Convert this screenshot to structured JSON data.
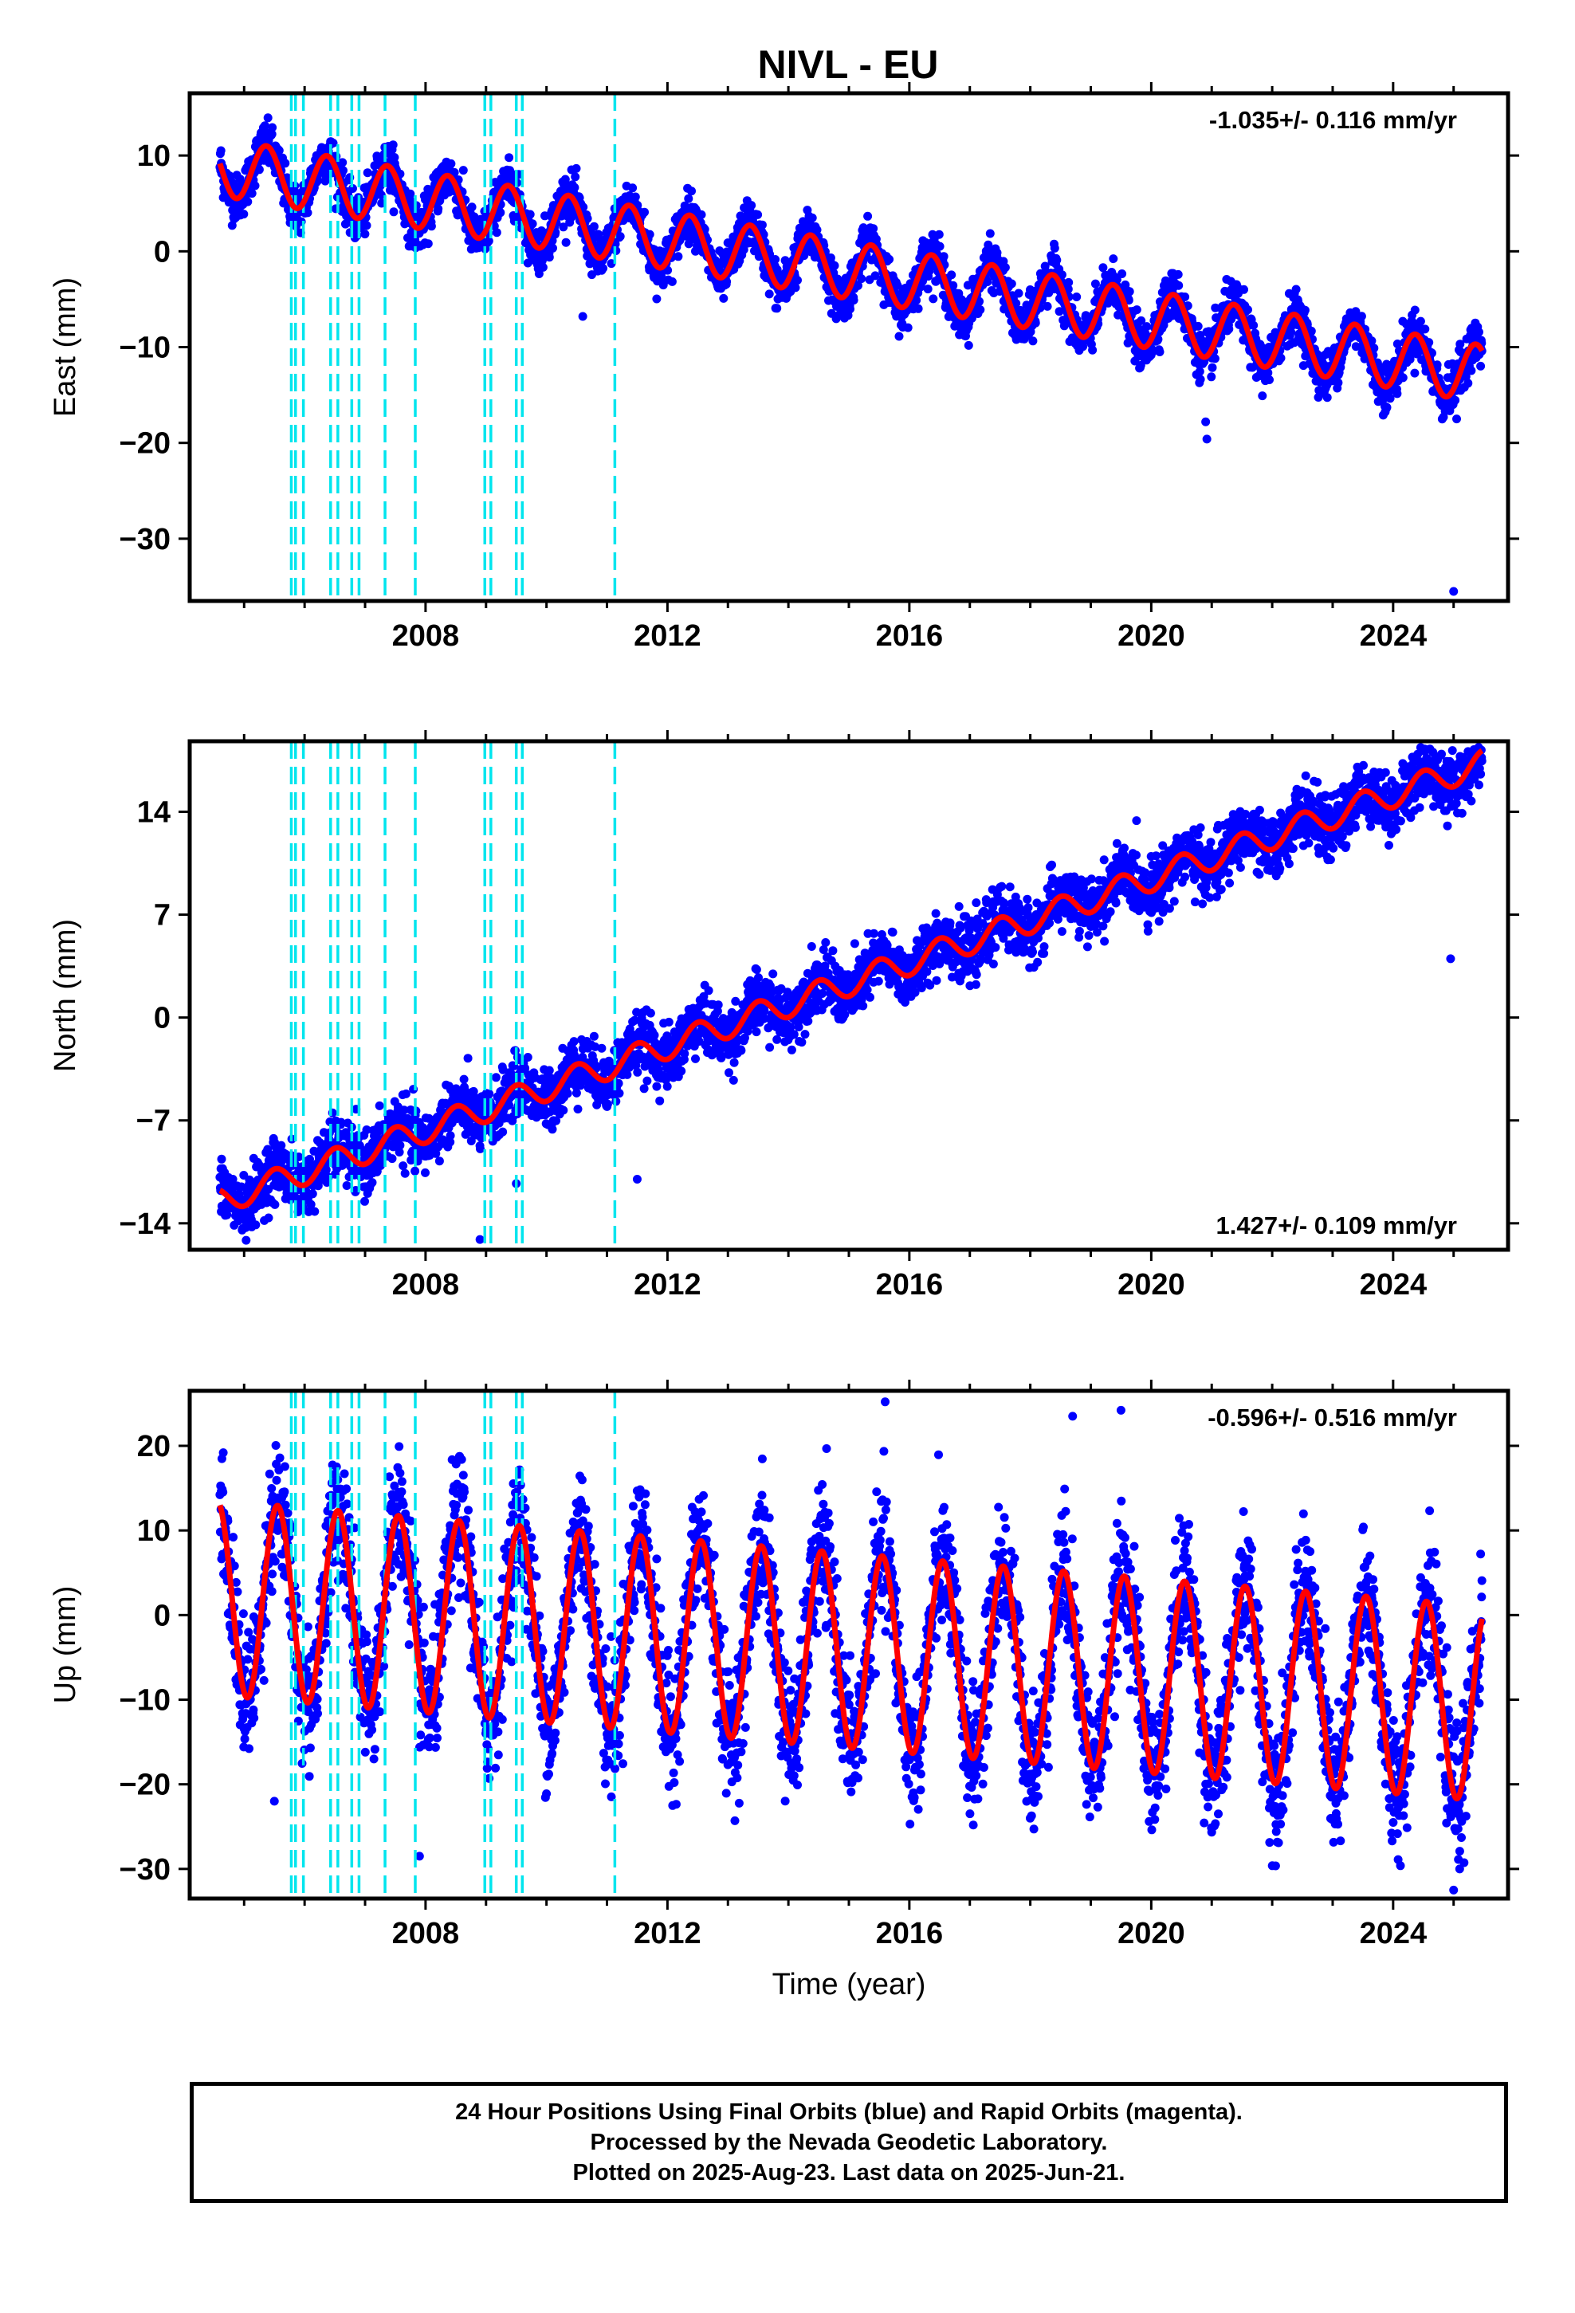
{
  "title": "NIVL - EU",
  "colors": {
    "final_orbit_points": "#0000ff",
    "model_fit": "#ff0000",
    "event_lines": "#00e5ee",
    "frame": "#000000"
  },
  "chart_data": [
    {
      "type": "scatter",
      "name": "east",
      "ylabel": "East (mm)",
      "xlabel": "",
      "rate": "-1.035+/- 0.116 mm/yr",
      "rate_position": "top-right",
      "xlim": [
        2004.1,
        2025.9
      ],
      "ylim": [
        -36.5,
        16.5
      ],
      "yticks": [
        10,
        0,
        -10,
        -20,
        -30
      ],
      "ytick_labels": [
        "10",
        "0",
        "−10",
        "−20",
        "−30"
      ],
      "xticks": [
        2008,
        2012,
        2016,
        2020,
        2024
      ],
      "xtick_labels": [
        "2008",
        "2012",
        "2016",
        "2020",
        "2024"
      ],
      "model": {
        "start": 2004.6,
        "end": 2025.47,
        "offset": 8.8,
        "trend": -1.035,
        "annual_amplitude": 3.0,
        "annual_phase": 1.45
      },
      "outliers": [
        [
          2020.9,
          -17.8
        ],
        [
          2020.92,
          -19.6
        ],
        [
          2025.05,
          -17.5
        ],
        [
          2025.0,
          -35.5
        ],
        [
          2010.6,
          -6.8
        ]
      ]
    },
    {
      "type": "scatter",
      "name": "north",
      "ylabel": "North (mm)",
      "xlabel": "",
      "rate": "1.427+/- 0.109 mm/yr",
      "rate_position": "bottom-right",
      "xlim": [
        2004.1,
        2025.9
      ],
      "ylim": [
        -15.8,
        18.8
      ],
      "yticks": [
        14,
        7,
        0,
        -7,
        -14
      ],
      "ytick_labels": [
        "14",
        "7",
        "0",
        "−7",
        "−14"
      ],
      "xticks": [
        2008,
        2012,
        2016,
        2020,
        2024
      ],
      "xtick_labels": [
        "2008",
        "2012",
        "2016",
        "2020",
        "2024"
      ],
      "model": {
        "start": 2004.6,
        "end": 2025.47,
        "offset": -12.5,
        "trend": 1.427,
        "annual_amplitude": 0.9,
        "annual_phase": 0.6
      },
      "outliers": [
        [
          2024.95,
          4.0
        ],
        [
          2009.5,
          -11.3
        ],
        [
          2008.9,
          -15.1
        ],
        [
          2011.5,
          -11.0
        ]
      ]
    },
    {
      "type": "scatter",
      "name": "up",
      "ylabel": "Up (mm)",
      "xlabel": "Time (year)",
      "rate": "-0.596+/- 0.516 mm/yr",
      "rate_position": "top-right",
      "xlim": [
        2004.1,
        2025.9
      ],
      "ylim": [
        -33.5,
        26.5
      ],
      "yticks": [
        20,
        10,
        0,
        -10,
        -20,
        -30
      ],
      "ytick_labels": [
        "20",
        "10",
        "0",
        "−10",
        "−20",
        "−30"
      ],
      "xticks": [
        2008,
        2012,
        2016,
        2020,
        2024
      ],
      "xtick_labels": [
        "2008",
        "2012",
        "2016",
        "2020",
        "2024"
      ],
      "model": {
        "start": 2004.6,
        "end": 2025.47,
        "offset": 2.0,
        "trend": -0.596,
        "annual_amplitude": 11.5,
        "annual_phase": 0.3
      },
      "outliers": [
        [
          2015.6,
          25.2
        ],
        [
          2019.5,
          24.2
        ],
        [
          2018.7,
          23.5
        ],
        [
          2007.9,
          -28.5
        ],
        [
          2025.0,
          -32.5
        ],
        [
          2025.1,
          -30.0
        ],
        [
          2005.5,
          -22.0
        ]
      ]
    }
  ],
  "event_lines": [
    2005.78,
    2005.85,
    2005.98,
    2006.43,
    2006.55,
    2006.78,
    2006.9,
    2007.33,
    2007.83,
    2008.98,
    2009.08,
    2009.5,
    2009.6,
    2011.13
  ],
  "footer": {
    "line1": "24 Hour Positions Using Final Orbits (blue) and Rapid Orbits (magenta).",
    "line2": "Processed by the Nevada Geodetic Laboratory.",
    "line3": "Plotted on 2025-Aug-23. Last data on 2025-Jun-21."
  }
}
